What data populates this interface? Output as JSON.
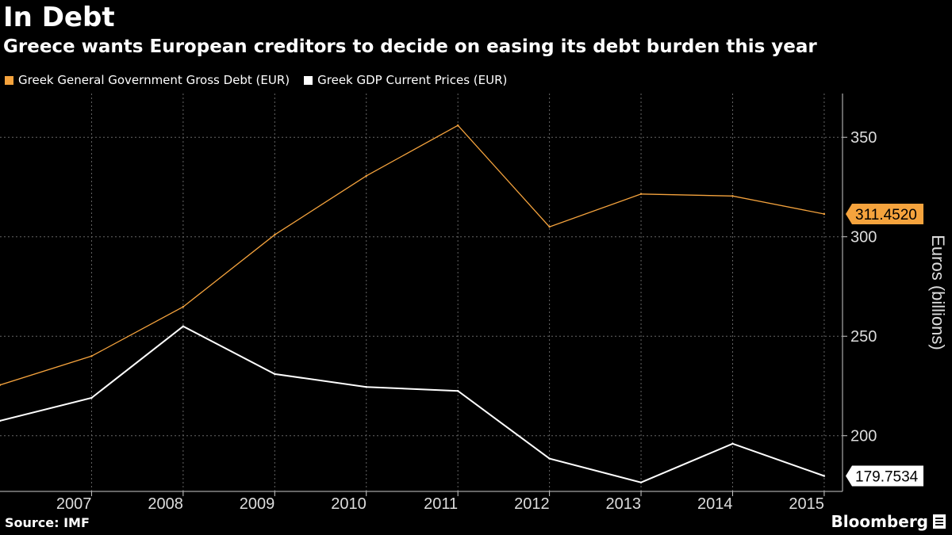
{
  "header": {
    "title": "In Debt",
    "subtitle": "Greece wants European creditors to decide on easing its debt burden this year"
  },
  "footer": {
    "source": "Source: IMF",
    "brand": "Bloomberg"
  },
  "colors": {
    "debt": "#f5a33d",
    "gdp": "#ffffff",
    "grid": "#666666",
    "background": "#000000"
  },
  "chart_data": {
    "type": "line",
    "title": "In Debt",
    "xlabel": "",
    "ylabel": "Euros (billions)",
    "x": [
      2006,
      2007,
      2008,
      2009,
      2010,
      2011,
      2012,
      2013,
      2014,
      2015
    ],
    "xlim": [
      2006,
      2015.2
    ],
    "ylim": [
      172,
      372
    ],
    "x_ticks": [
      2007,
      2008,
      2009,
      2010,
      2011,
      2012,
      2013,
      2014,
      2015
    ],
    "y_ticks": [
      200,
      250,
      300,
      350
    ],
    "grid": true,
    "legend_position": "top-left",
    "series": [
      {
        "name": "Greek General Government Gross Debt (EUR)",
        "color": "#f5a33d",
        "values": [
          225.5,
          240,
          264.8,
          301,
          330.6,
          356,
          305,
          321.5,
          320.5,
          311.452
        ],
        "last_value_label": "311.4520"
      },
      {
        "name": "Greek GDP Current Prices (EUR)",
        "color": "#ffffff",
        "values": [
          207.5,
          219,
          255,
          231,
          224.5,
          222.5,
          188.5,
          176.5,
          196,
          179.7534
        ],
        "last_value_label": "179.7534"
      }
    ]
  }
}
